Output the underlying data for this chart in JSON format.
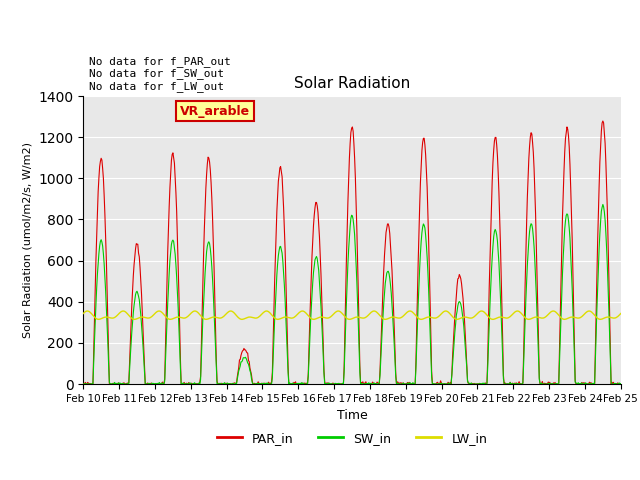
{
  "title": "Solar Radiation",
  "xlabel": "Time",
  "ylabel": "Solar Radiation (umol/m2/s, W/m2)",
  "ylim": [
    0,
    1400
  ],
  "yticks": [
    0,
    200,
    400,
    600,
    800,
    1000,
    1200,
    1400
  ],
  "date_labels": [
    "Feb 10",
    "Feb 11",
    "Feb 12",
    "Feb 13",
    "Feb 14",
    "Feb 15",
    "Feb 16",
    "Feb 17",
    "Feb 18",
    "Feb 19",
    "Feb 20",
    "Feb 21",
    "Feb 22",
    "Feb 23",
    "Feb 24",
    "Feb 25"
  ],
  "PAR_color": "#dd0000",
  "SW_color": "#00cc00",
  "LW_color": "#dddd00",
  "background_color": "#e8e8e8",
  "annotation_text": "No data for f_PAR_out\nNo data for f_SW_out\nNo data for f_LW_out",
  "box_label": "VR_arable",
  "box_facecolor": "#ffff99",
  "box_edgecolor": "#cc0000",
  "box_textcolor": "#cc0000",
  "lw_base": 330,
  "lw_amplitude": 30,
  "grid_color": "#ffffff",
  "legend_labels": [
    "PAR_in",
    "SW_in",
    "LW_in"
  ],
  "par_peaks": [
    1100,
    680,
    1120,
    1100,
    170,
    1060,
    880,
    1250,
    780,
    1200,
    530,
    1200,
    1220,
    1250,
    1280
  ],
  "sw_peaks": [
    700,
    450,
    700,
    690,
    130,
    670,
    620,
    820,
    550,
    780,
    400,
    750,
    780,
    830,
    870
  ]
}
